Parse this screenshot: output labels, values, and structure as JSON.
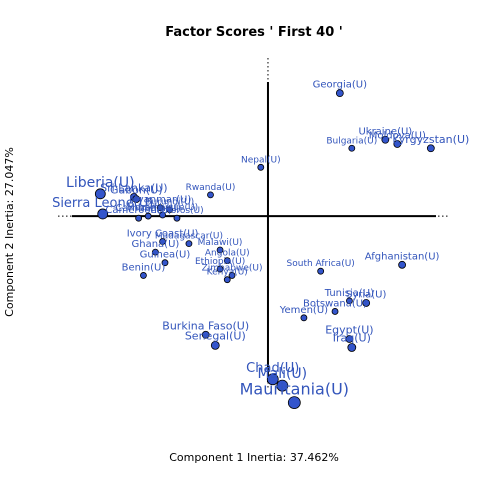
{
  "chart_data": {
    "type": "scatter",
    "title": "Factor Scores ' First 40 '",
    "xlabel": "Component 1 Inertia: 37.462%",
    "ylabel": "Component 2 Inertia: 27.047%",
    "xlim": [
      -0.86,
      0.76
    ],
    "ylim": [
      -0.83,
      0.76
    ],
    "marker_color": "#3355cc",
    "marker_edge_color": "#000000",
    "label_color": "#3355bb",
    "axes_color": "#000000",
    "grid": false,
    "points": [
      {
        "label": "Liberia(U)",
        "x": -0.7,
        "y": 0.105,
        "size": 8,
        "label_size": 14
      },
      {
        "label": "Sierra Leone(U)",
        "x": -0.69,
        "y": 0.01,
        "size": 8,
        "label_size": 13
      },
      {
        "label": "Sri Lanka(U)",
        "x": -0.56,
        "y": 0.09,
        "size": 5,
        "label_size": 11
      },
      {
        "label": "Gabon(U)",
        "x": -0.55,
        "y": 0.08,
        "size": 5,
        "label_size": 11
      },
      {
        "label": "Cambodia(U)",
        "x": -0.5,
        "y": 0.0,
        "size": 4,
        "label_size": 10
      },
      {
        "label": "Myanmar(U)",
        "x": -0.45,
        "y": 0.04,
        "size": 4,
        "label_size": 10
      },
      {
        "label": "Burundi(U)",
        "x": -0.41,
        "y": 0.03,
        "size": 4,
        "label_size": 9
      },
      {
        "label": "Mozambique(U)",
        "x": -0.44,
        "y": 0.005,
        "size": 4,
        "label_size": 9
      },
      {
        "label": "Cameroon(U)",
        "x": -0.54,
        "y": -0.01,
        "size": 4,
        "label_size": 10
      },
      {
        "label": "Comoros(U)",
        "x": -0.38,
        "y": -0.01,
        "size": 4,
        "label_size": 9
      },
      {
        "label": "Rwanda(U)",
        "x": -0.24,
        "y": 0.1,
        "size": 4,
        "label_size": 9
      },
      {
        "label": "Nepal(U)",
        "x": -0.03,
        "y": 0.23,
        "size": 4,
        "label_size": 9
      },
      {
        "label": "Georgia(U)",
        "x": 0.3,
        "y": 0.58,
        "size": 5,
        "label_size": 10
      },
      {
        "label": "Ukraine(U)",
        "x": 0.49,
        "y": 0.36,
        "size": 5,
        "label_size": 10
      },
      {
        "label": "Bulgaria(U)",
        "x": 0.35,
        "y": 0.32,
        "size": 4,
        "label_size": 9
      },
      {
        "label": "Kyrgyzstan(U)",
        "x": 0.68,
        "y": 0.32,
        "size": 5,
        "label_size": 11
      },
      {
        "label": "Moldova(U)",
        "x": 0.54,
        "y": 0.34,
        "size": 5,
        "label_size": 10
      },
      {
        "label": "Ivory Coast(U)",
        "x": -0.44,
        "y": -0.12,
        "size": 4,
        "label_size": 10
      },
      {
        "label": "Madagascar(U)",
        "x": -0.33,
        "y": -0.13,
        "size": 4,
        "label_size": 9
      },
      {
        "label": "Malawi(U)",
        "x": -0.2,
        "y": -0.16,
        "size": 4,
        "label_size": 9
      },
      {
        "label": "Ghana(U)",
        "x": -0.47,
        "y": -0.17,
        "size": 4,
        "label_size": 10
      },
      {
        "label": "Guinea(U)",
        "x": -0.43,
        "y": -0.22,
        "size": 4,
        "label_size": 10
      },
      {
        "label": "Angola(U)",
        "x": -0.17,
        "y": -0.21,
        "size": 4,
        "label_size": 9
      },
      {
        "label": "Ethiopia(U)",
        "x": -0.2,
        "y": -0.25,
        "size": 4,
        "label_size": 9
      },
      {
        "label": "Zimbabwe(U)",
        "x": -0.15,
        "y": -0.28,
        "size": 4,
        "label_size": 9
      },
      {
        "label": "Benin(U)",
        "x": -0.52,
        "y": -0.28,
        "size": 4,
        "label_size": 10
      },
      {
        "label": "Kenya(U)",
        "x": -0.17,
        "y": -0.3,
        "size": 4,
        "label_size": 9
      },
      {
        "label": "South Africa(U)",
        "x": 0.22,
        "y": -0.26,
        "size": 4,
        "label_size": 9
      },
      {
        "label": "Afghanistan(U)",
        "x": 0.56,
        "y": -0.23,
        "size": 5,
        "label_size": 10
      },
      {
        "label": "Tunisia(U)",
        "x": 0.34,
        "y": -0.4,
        "size": 4,
        "label_size": 10
      },
      {
        "label": "Syria(U)",
        "x": 0.41,
        "y": -0.41,
        "size": 5,
        "label_size": 10
      },
      {
        "label": "Botswana(U)",
        "x": 0.28,
        "y": -0.45,
        "size": 4,
        "label_size": 10
      },
      {
        "label": "Yemen(U)",
        "x": 0.15,
        "y": -0.48,
        "size": 4,
        "label_size": 10
      },
      {
        "label": "Burkina Faso(U)",
        "x": -0.26,
        "y": -0.56,
        "size": 5,
        "label_size": 11
      },
      {
        "label": "Senegal(U)",
        "x": -0.22,
        "y": -0.61,
        "size": 6,
        "label_size": 11
      },
      {
        "label": "Egypt(U)",
        "x": 0.34,
        "y": -0.58,
        "size": 5,
        "label_size": 11
      },
      {
        "label": "Iraq(U)",
        "x": 0.35,
        "y": -0.62,
        "size": 6,
        "label_size": 11
      },
      {
        "label": "Chad(U)",
        "x": 0.02,
        "y": -0.77,
        "size": 9,
        "label_size": 13
      },
      {
        "label": "Mali(U)",
        "x": 0.06,
        "y": -0.8,
        "size": 9,
        "label_size": 14
      },
      {
        "label": "Mauritania(U)",
        "x": 0.11,
        "y": -0.88,
        "size": 10,
        "label_size": 16
      }
    ]
  }
}
